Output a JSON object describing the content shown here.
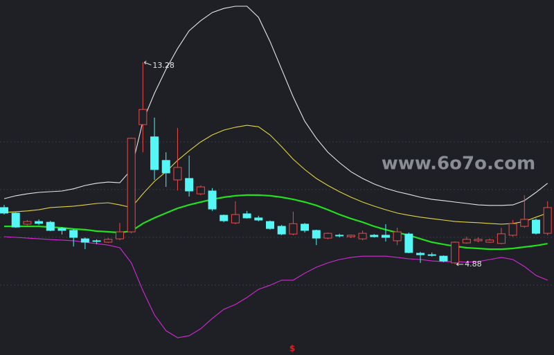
{
  "chart_data": {
    "type": "candlestick",
    "ylim": [
      1.11,
      15.87
    ],
    "up_color": "#f04a4a",
    "down_color": "#54f6f6",
    "candles": {
      "open": [
        7.24,
        7.01,
        6.55,
        6.66,
        6.63,
        6.37,
        6.29,
        5.94,
        5.86,
        5.8,
        5.94,
        6.23,
        10.69,
        10.18,
        9.2,
        8.39,
        8.45,
        7.81,
        7.93,
        6.92,
        6.6,
        6.98,
        6.81,
        6.66,
        6.46,
        6.14,
        6.55,
        6.29,
        5.97,
        6.09,
        6.03,
        5.94,
        6.09,
        6.09,
        5.86,
        6.14,
        5.34,
        5.28,
        5.22,
        4.94,
        5.77,
        5.86,
        5.8,
        5.75,
        6.09,
        6.46,
        6.72,
        6.17
      ],
      "close": [
        7.01,
        6.43,
        6.66,
        6.58,
        6.29,
        6.29,
        6.0,
        5.8,
        5.83,
        5.92,
        6.23,
        10.12,
        11.32,
        8.82,
        8.68,
        8.91,
        7.93,
        8.1,
        7.18,
        6.69,
        6.95,
        6.81,
        6.72,
        6.37,
        6.14,
        6.57,
        6.29,
        5.97,
        6.17,
        6.06,
        6.09,
        6.17,
        6.03,
        6.0,
        6.23,
        5.37,
        5.28,
        5.25,
        5.02,
        5.8,
        5.92,
        5.92,
        5.89,
        6.15,
        6.57,
        6.75,
        6.17,
        7.24
      ],
      "high": [
        7.35,
        7.04,
        6.72,
        6.75,
        6.69,
        6.43,
        6.35,
        6.0,
        5.92,
        5.98,
        6.6,
        10.15,
        13.28,
        10.98,
        9.54,
        10.55,
        9.4,
        8.16,
        8.05,
        6.95,
        7.5,
        7.1,
        6.9,
        6.7,
        6.52,
        7.07,
        6.6,
        6.32,
        6.2,
        6.15,
        6.12,
        6.28,
        6.14,
        6.55,
        6.4,
        6.2,
        5.4,
        5.37,
        5.25,
        5.83,
        6.03,
        6.0,
        5.95,
        6.4,
        6.72,
        7.75,
        6.78,
        7.5
      ],
      "low": [
        6.95,
        6.4,
        6.5,
        6.52,
        6.26,
        6.12,
        5.62,
        5.51,
        5.72,
        5.77,
        5.88,
        6.17,
        9.54,
        8.39,
        8.1,
        7.95,
        7.7,
        7.75,
        7.1,
        6.63,
        6.55,
        6.78,
        6.66,
        6.32,
        6.09,
        6.09,
        6.2,
        5.68,
        5.92,
        6.0,
        5.97,
        5.88,
        6.0,
        5.83,
        5.68,
        5.34,
        4.94,
        5.2,
        4.97,
        4.88,
        5.74,
        5.8,
        5.77,
        5.72,
        6.03,
        6.4,
        6.12,
        6.09
      ]
    },
    "series": [
      {
        "color": "#e8e8e8",
        "values": [
          7.61,
          7.73,
          7.81,
          7.87,
          7.9,
          7.93,
          8.02,
          8.16,
          8.25,
          8.3,
          8.27,
          8.82,
          10.83,
          11.99,
          12.99,
          13.85,
          14.59,
          15.01,
          15.35,
          15.52,
          15.61,
          15.61,
          15.15,
          14.14,
          12.99,
          11.84,
          10.83,
          10.12,
          9.54,
          9.11,
          8.73,
          8.45,
          8.22,
          8.04,
          7.9,
          7.79,
          7.67,
          7.58,
          7.53,
          7.47,
          7.41,
          7.35,
          7.33,
          7.33,
          7.35,
          7.53,
          7.87,
          8.25
        ]
      },
      {
        "color": "#e6d53a",
        "values": [
          7.04,
          7.07,
          7.1,
          7.15,
          7.24,
          7.27,
          7.3,
          7.35,
          7.41,
          7.44,
          7.35,
          7.24,
          7.81,
          8.33,
          8.73,
          9.2,
          9.6,
          9.97,
          10.26,
          10.46,
          10.58,
          10.66,
          10.6,
          10.26,
          9.77,
          9.25,
          8.82,
          8.45,
          8.16,
          7.9,
          7.67,
          7.47,
          7.3,
          7.15,
          7.01,
          6.92,
          6.84,
          6.78,
          6.72,
          6.66,
          6.63,
          6.61,
          6.58,
          6.55,
          6.58,
          6.66,
          6.84,
          7.01
        ]
      },
      {
        "color": "#22e01e",
        "width": 2.2,
        "values": [
          6.46,
          6.46,
          6.46,
          6.46,
          6.43,
          6.4,
          6.35,
          6.32,
          6.26,
          6.23,
          6.2,
          6.26,
          6.58,
          6.81,
          7.01,
          7.21,
          7.35,
          7.47,
          7.58,
          7.67,
          7.73,
          7.76,
          7.76,
          7.73,
          7.67,
          7.58,
          7.47,
          7.33,
          7.15,
          6.95,
          6.78,
          6.63,
          6.46,
          6.32,
          6.2,
          6.09,
          5.94,
          5.8,
          5.71,
          5.63,
          5.57,
          5.54,
          5.51,
          5.51,
          5.54,
          5.6,
          5.66,
          5.74
        ]
      },
      {
        "color": "#d62ad6",
        "values": [
          6.03,
          6.0,
          5.97,
          5.94,
          5.91,
          5.89,
          5.86,
          5.8,
          5.74,
          5.68,
          5.57,
          4.94,
          3.79,
          2.78,
          2.12,
          1.83,
          1.91,
          2.2,
          2.63,
          3.01,
          3.21,
          3.5,
          3.84,
          4.01,
          4.22,
          4.22,
          4.51,
          4.76,
          4.94,
          5.08,
          5.17,
          5.22,
          5.22,
          5.22,
          5.17,
          5.11,
          5.08,
          5.02,
          4.99,
          4.99,
          4.97,
          4.99,
          5.08,
          5.17,
          5.08,
          4.79,
          4.42,
          4.22
        ]
      }
    ],
    "max_label": "13.28",
    "min_label": "4.88",
    "watermark": "www.6o7o.com",
    "marker": "$"
  }
}
